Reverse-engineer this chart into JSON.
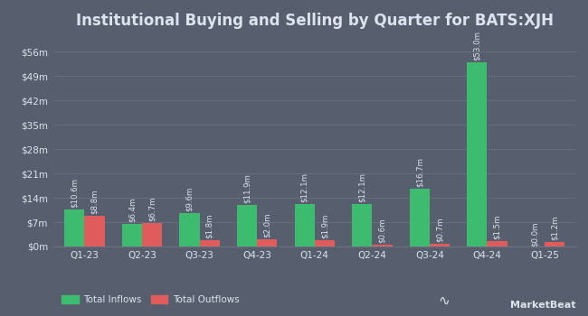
{
  "title": "Institutional Buying and Selling by Quarter for BATS:XJH",
  "quarters": [
    "Q1-23",
    "Q2-23",
    "Q3-23",
    "Q4-23",
    "Q1-24",
    "Q2-24",
    "Q3-24",
    "Q4-24",
    "Q1-25"
  ],
  "inflows": [
    10.6,
    6.4,
    9.6,
    11.9,
    12.1,
    12.1,
    16.7,
    53.0,
    0.0
  ],
  "outflows": [
    8.8,
    6.7,
    1.8,
    2.0,
    1.9,
    0.6,
    0.7,
    1.5,
    1.2
  ],
  "inflow_labels": [
    "$10.6m",
    "$6.4m",
    "$9.6m",
    "$11.9m",
    "$12.1m",
    "$12.1m",
    "$16.7m",
    "$53.0m",
    "$0.0m"
  ],
  "outflow_labels": [
    "$8.8m",
    "$6.7m",
    "$1.8m",
    "$2.0m",
    "$1.9m",
    "$0.6m",
    "$0.7m",
    "$1.5m",
    "$1.2m"
  ],
  "inflow_color": "#3dbb6e",
  "outflow_color": "#e05c5c",
  "bg_color": "#575f6e",
  "text_color": "#dce3ed",
  "grid_color": "#6a7282",
  "bar_width": 0.35,
  "ylim": [
    0,
    60
  ],
  "yticks": [
    0,
    7,
    14,
    21,
    28,
    35,
    42,
    49,
    56
  ],
  "ytick_labels": [
    "$0m",
    "$7m",
    "$14m",
    "$21m",
    "$28m",
    "$35m",
    "$42m",
    "$49m",
    "$56m"
  ],
  "title_fontsize": 12,
  "tick_fontsize": 7.5,
  "label_fontsize": 6.2,
  "legend_fontsize": 7.5
}
